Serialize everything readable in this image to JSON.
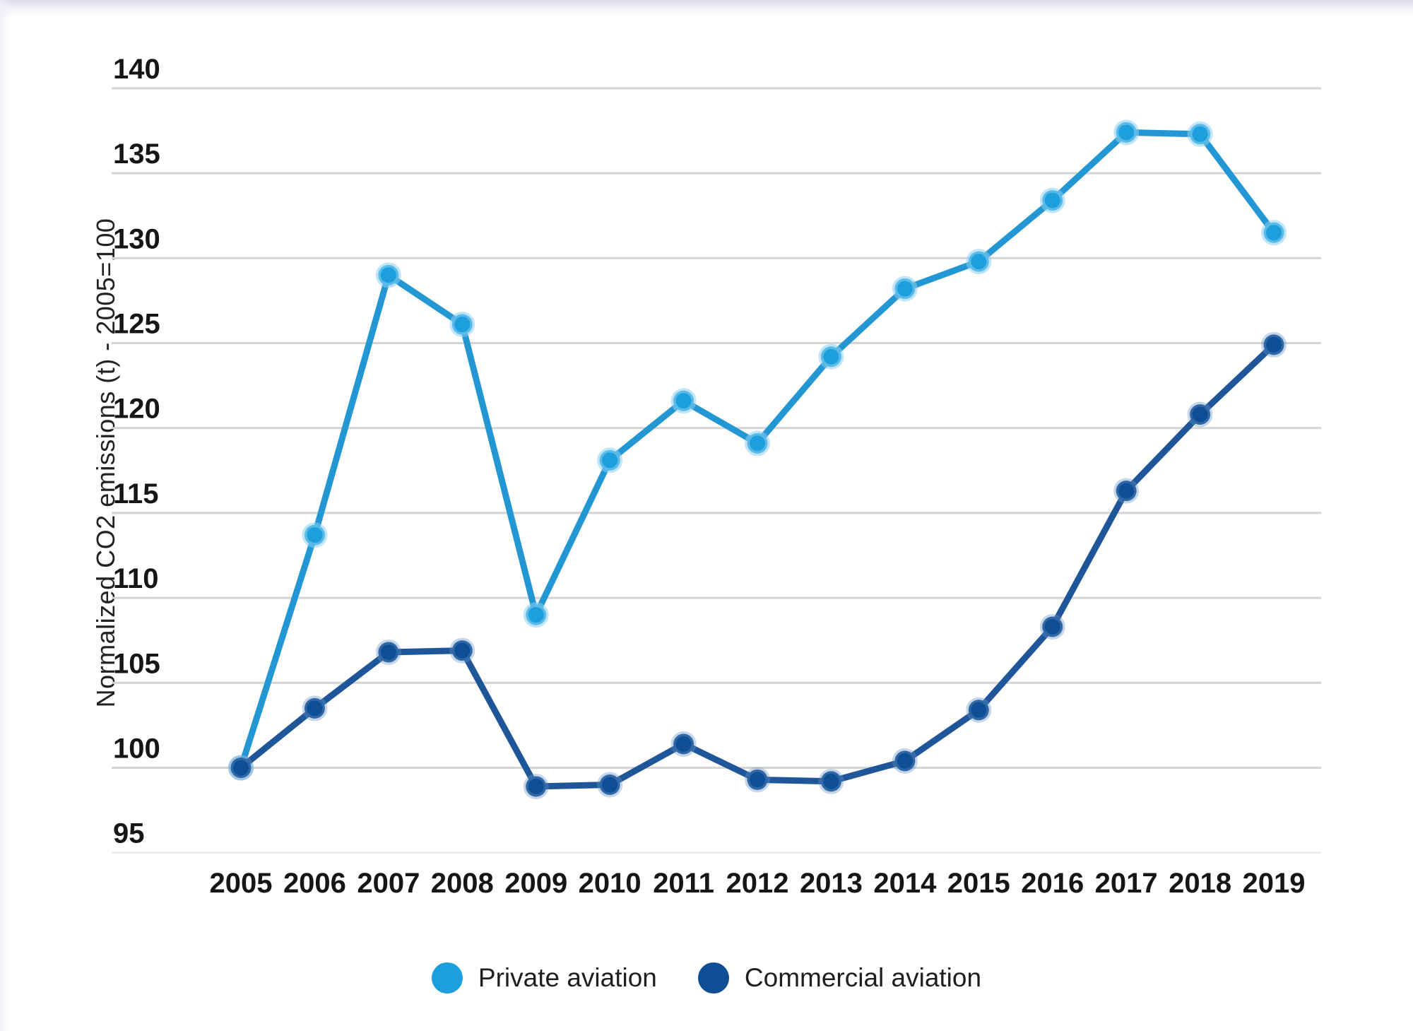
{
  "window": {
    "top_edge_color": "#dcdbec"
  },
  "axis": {
    "y_title": "Normalized CO2 emissions (t) - 2005=100"
  },
  "legend": {
    "items": [
      {
        "label": "Private aviation",
        "color": "#1d9fdd"
      },
      {
        "label": "Commercial aviation",
        "color": "#0e4e95"
      }
    ]
  },
  "chart_data": {
    "type": "line",
    "title": "",
    "xlabel": "",
    "ylabel": "Normalized CO2 emissions (t) - 2005=100",
    "x": [
      2005,
      2006,
      2007,
      2008,
      2009,
      2010,
      2011,
      2012,
      2013,
      2014,
      2015,
      2016,
      2017,
      2018,
      2019
    ],
    "series": [
      {
        "name": "Private aviation",
        "color": "#2297d3",
        "marker_color": "#1d9fdd",
        "values": [
          100,
          113.7,
          129,
          126.1,
          109,
          118.1,
          121.6,
          119.1,
          124.2,
          128.2,
          129.8,
          133.4,
          137.4,
          137.3,
          131.5
        ]
      },
      {
        "name": "Commercial aviation",
        "color": "#1f5699",
        "marker_color": "#0e4e95",
        "values": [
          100,
          103.5,
          106.8,
          106.9,
          98.9,
          99,
          101.4,
          99.3,
          99.2,
          100.4,
          103.4,
          108.3,
          116.3,
          120.8,
          124.9
        ]
      }
    ],
    "ylim": [
      95,
      140
    ],
    "yticks": [
      95,
      100,
      105,
      110,
      115,
      120,
      125,
      130,
      135,
      140
    ],
    "grid": true,
    "legend_position": "bottom",
    "gridline_color": "#d4d4d4",
    "baseline_gridline_color": "#eaeaea",
    "tick_label_color": "#161616"
  }
}
